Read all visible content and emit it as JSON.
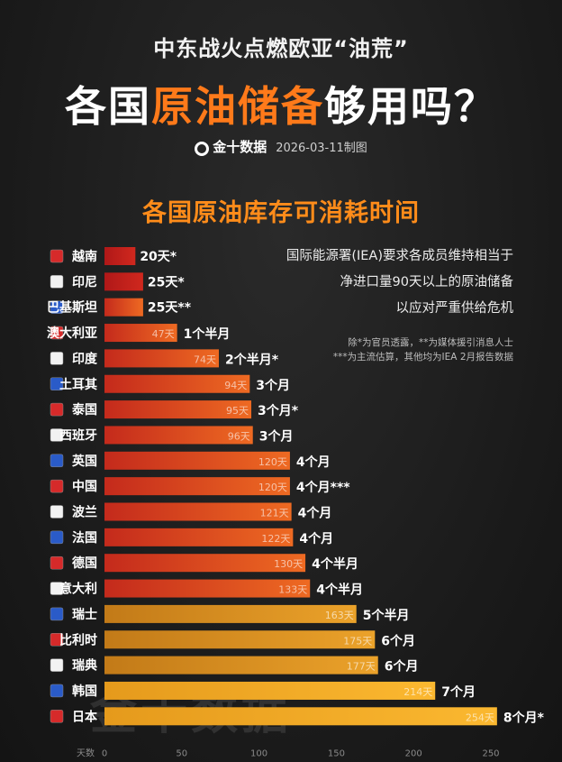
{
  "header": {
    "subtitle": "中东战火点燃欧亚“油荒”",
    "title_pre": "各国",
    "title_highlight": "原油储备",
    "title_post": "够用吗？",
    "brand": "金十数据",
    "date_note": "2026-03-11制图"
  },
  "note": {
    "line1": "国际能源署(IEA)要求各成员维持相当于",
    "line2": "净进口量90天以上的原油储备",
    "line3": "以应对严重供给危机"
  },
  "footnotes": {
    "line1": "除*为官员透露，**为媒体援引消息人士",
    "line2": "***为主流估算，其他均为IEA 2月报告数据"
  },
  "watermark": "金十数据",
  "colors": {
    "accent": "#ff7a1a",
    "red": "#c8201e",
    "orange": "#e8601e",
    "gold": "#f0a020"
  },
  "chart_data": {
    "type": "bar",
    "orientation": "horizontal",
    "title": "各国原油库存可消耗时间",
    "xlabel": "天数",
    "xlim": [
      0,
      250
    ],
    "xticks": [
      0,
      50,
      100,
      150,
      200,
      250
    ],
    "categories": [
      "越南",
      "印尼",
      "巴基斯坦",
      "澳大利亚",
      "印度",
      "土耳其",
      "泰国",
      "西班牙",
      "英国",
      "中国",
      "波兰",
      "法国",
      "德国",
      "意大利",
      "瑞士",
      "比利时",
      "瑞典",
      "韩国",
      "日本"
    ],
    "values": [
      20,
      25,
      25,
      47,
      74,
      94,
      95,
      96,
      120,
      120,
      121,
      122,
      130,
      133,
      163,
      175,
      177,
      214,
      254
    ],
    "unit": "天",
    "value_marks": [
      "*",
      "*",
      "**",
      "",
      "",
      "",
      "",
      "",
      "",
      "",
      "",
      "",
      "",
      "",
      "",
      "",
      "",
      "",
      ""
    ],
    "duration_labels": [
      "",
      "",
      "",
      "1个半月",
      "2个半月",
      "3个月",
      "3个月",
      "3个月",
      "4个月",
      "4个月",
      "4个月",
      "4个月",
      "4个半月",
      "4个半月",
      "5个半月",
      "6个月",
      "6个月",
      "7个月",
      "8个月"
    ],
    "duration_marks": [
      "",
      "",
      "",
      "",
      "*",
      "",
      "*",
      "",
      "",
      "***",
      "",
      "",
      "",
      "",
      "",
      "",
      "",
      "",
      "*"
    ]
  }
}
